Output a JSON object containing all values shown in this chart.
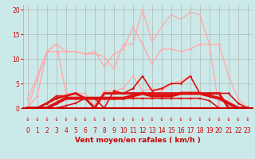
{
  "background_color": "#cce9e9",
  "grid_color": "#aaaaaa",
  "x_labels": [
    0,
    1,
    2,
    3,
    4,
    5,
    6,
    7,
    8,
    9,
    10,
    11,
    12,
    13,
    14,
    15,
    16,
    17,
    18,
    19,
    20,
    21,
    22,
    23
  ],
  "xlabel": "Vent moyen/en rafales ( km/h )",
  "ylim": [
    0,
    21
  ],
  "xlim": [
    -0.5,
    23.5
  ],
  "yticks": [
    0,
    5,
    10,
    15,
    20
  ],
  "lines": [
    {
      "x": [
        0,
        1,
        2,
        3,
        4,
        5,
        6,
        7,
        8,
        9,
        10,
        11,
        12,
        13,
        14,
        15,
        16,
        17,
        18,
        19,
        20,
        21,
        22,
        23
      ],
      "y": [
        0,
        6,
        11.5,
        13,
        11.5,
        11.5,
        11,
        11,
        10.5,
        8,
        13,
        13,
        20,
        13.5,
        16.5,
        19,
        18,
        19.5,
        19,
        13,
        0,
        0,
        0,
        0
      ],
      "color": "#ffaaaa",
      "lw": 1.0,
      "marker": null
    },
    {
      "x": [
        0,
        1,
        2,
        3,
        4,
        5,
        6,
        7,
        8,
        9,
        10,
        11,
        12,
        13,
        14,
        15,
        16,
        17,
        18,
        19,
        20,
        21,
        22,
        23
      ],
      "y": [
        0,
        2.5,
        11.5,
        11.5,
        11.5,
        11.5,
        11,
        11.5,
        8.5,
        11,
        12,
        16.5,
        13,
        9,
        12,
        12,
        11.5,
        12,
        13,
        13,
        13,
        6.5,
        2,
        0
      ],
      "color": "#ffaaaa",
      "lw": 1.0,
      "marker": "D",
      "markersize": 1.5
    },
    {
      "x": [
        0,
        1,
        2,
        3,
        4,
        5,
        6,
        7,
        8,
        9,
        10,
        11,
        12,
        13,
        14,
        15,
        16,
        17,
        18,
        19,
        20,
        21,
        22,
        23
      ],
      "y": [
        2,
        6.5,
        11.5,
        13,
        3,
        3,
        3,
        0.5,
        3.5,
        3.5,
        4,
        6.5,
        3.5,
        4,
        3.5,
        5,
        5.5,
        6.5,
        3,
        3,
        3,
        1,
        0,
        0
      ],
      "color": "#ffaaaa",
      "lw": 1.0,
      "marker": "D",
      "markersize": 1.5
    },
    {
      "x": [
        0,
        1,
        2,
        3,
        4,
        5,
        6,
        7,
        8,
        9,
        10,
        11,
        12,
        13,
        14,
        15,
        16,
        17,
        18,
        19,
        20,
        21,
        22,
        23
      ],
      "y": [
        0,
        0,
        1,
        2.5,
        2.5,
        3,
        2,
        2,
        0,
        3.5,
        3,
        4,
        6.5,
        3.5,
        4,
        5,
        5,
        6.5,
        3,
        3,
        3,
        3,
        1,
        0
      ],
      "color": "#dd1111",
      "lw": 1.2,
      "marker": "D",
      "markersize": 1.5
    },
    {
      "x": [
        0,
        1,
        2,
        3,
        4,
        5,
        6,
        7,
        8,
        9,
        10,
        11,
        12,
        13,
        14,
        15,
        16,
        17,
        18,
        19,
        20,
        21,
        22,
        23
      ],
      "y": [
        0,
        0,
        1,
        2,
        2.5,
        3,
        2,
        0,
        3,
        3,
        3,
        3,
        3,
        3,
        3,
        3,
        3,
        3,
        3,
        3,
        3,
        0,
        0,
        0
      ],
      "color": "#dd1111",
      "lw": 2.0,
      "marker": "D",
      "markersize": 1.5
    },
    {
      "x": [
        0,
        1,
        2,
        3,
        4,
        5,
        6,
        7,
        8,
        9,
        10,
        11,
        12,
        13,
        14,
        15,
        16,
        17,
        18,
        19,
        20,
        21,
        22,
        23
      ],
      "y": [
        0,
        0,
        0,
        1,
        2,
        2,
        2,
        2,
        2,
        2,
        2,
        2.5,
        3,
        2.5,
        2.5,
        2.5,
        3,
        3,
        3,
        2.5,
        2,
        1,
        0,
        0
      ],
      "color": "#dd1111",
      "lw": 2.8,
      "marker": "D",
      "markersize": 1.5
    },
    {
      "x": [
        0,
        1,
        2,
        3,
        4,
        5,
        6,
        7,
        8,
        9,
        10,
        11,
        12,
        13,
        14,
        15,
        16,
        17,
        18,
        19,
        20,
        21,
        22,
        23
      ],
      "y": [
        0,
        0,
        0,
        0,
        0.5,
        1,
        2,
        2,
        2,
        2,
        2,
        2,
        2,
        2,
        2,
        2,
        2,
        2,
        2,
        1.5,
        0,
        0,
        0,
        0
      ],
      "color": "#dd1111",
      "lw": 1.2,
      "marker": "s",
      "markersize": 1.5
    }
  ],
  "arrow_color": "#cc0000",
  "tick_label_color": "#cc0000",
  "axis_label_color": "#cc0000",
  "axis_label_fontsize": 6.5,
  "tick_fontsize": 5.5,
  "red_bar_color": "#cc0000"
}
